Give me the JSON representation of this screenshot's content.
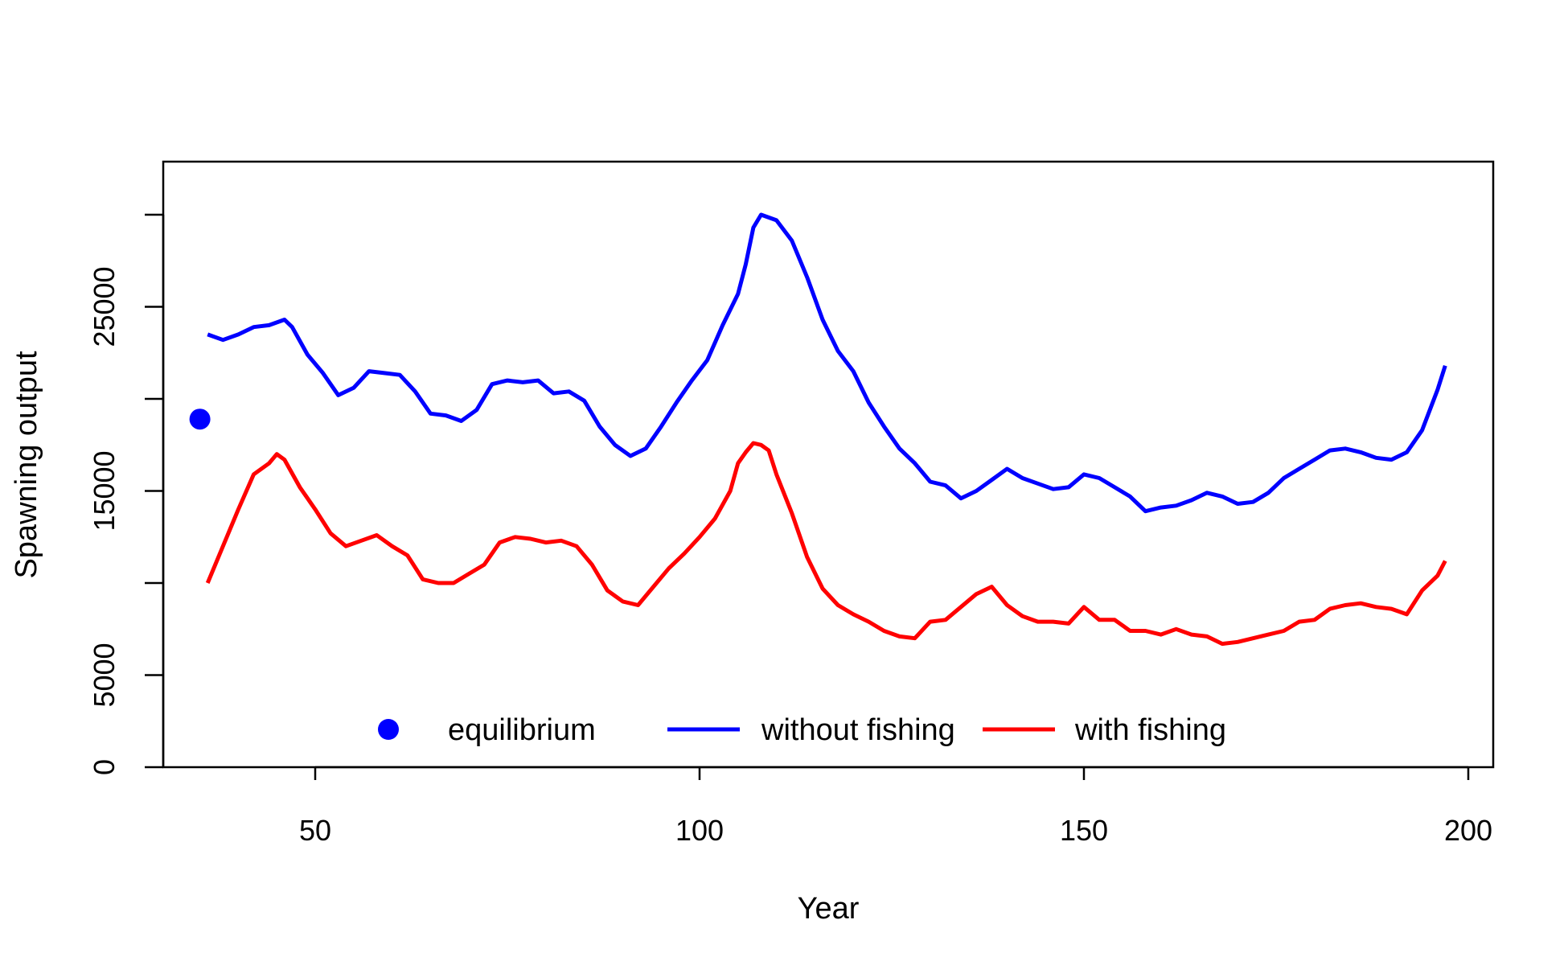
{
  "chart_data": {
    "type": "line",
    "xlabel": "Year",
    "ylabel": "Spawning output",
    "xlim": [
      30,
      200
    ],
    "ylim": [
      0,
      33000
    ],
    "x_ticks": [
      50,
      100,
      150,
      200
    ],
    "x_tick_labels": [
      "50",
      "100",
      "150",
      "200"
    ],
    "y_ticks": [
      0,
      5000,
      10000,
      15000,
      20000,
      25000,
      30000
    ],
    "y_tick_labels": [
      "0",
      "5000",
      "",
      "15000",
      "",
      "25000",
      ""
    ],
    "grid": false,
    "legend_position": "bottom",
    "equilibrium": {
      "x": 35,
      "y": 18900,
      "color": "#0000FF"
    },
    "series": [
      {
        "name": "without fishing",
        "color": "#0000FF",
        "points": [
          [
            36,
            23500
          ],
          [
            38,
            23200
          ],
          [
            40,
            23500
          ],
          [
            42,
            23900
          ],
          [
            44,
            24000
          ],
          [
            46,
            24300
          ],
          [
            47,
            23900
          ],
          [
            49,
            22400
          ],
          [
            51,
            21400
          ],
          [
            53,
            20200
          ],
          [
            55,
            20600
          ],
          [
            57,
            21500
          ],
          [
            59,
            21400
          ],
          [
            61,
            21300
          ],
          [
            63,
            20400
          ],
          [
            65,
            19200
          ],
          [
            67,
            19100
          ],
          [
            69,
            18800
          ],
          [
            71,
            19400
          ],
          [
            73,
            20800
          ],
          [
            75,
            21000
          ],
          [
            77,
            20900
          ],
          [
            79,
            21000
          ],
          [
            81,
            20300
          ],
          [
            83,
            20400
          ],
          [
            85,
            19900
          ],
          [
            87,
            18500
          ],
          [
            89,
            17500
          ],
          [
            91,
            16900
          ],
          [
            93,
            17300
          ],
          [
            95,
            18500
          ],
          [
            97,
            19800
          ],
          [
            99,
            21000
          ],
          [
            101,
            22100
          ],
          [
            103,
            24000
          ],
          [
            105,
            25700
          ],
          [
            106,
            27300
          ],
          [
            107,
            29300
          ],
          [
            108,
            30000
          ],
          [
            110,
            29700
          ],
          [
            112,
            28600
          ],
          [
            114,
            26600
          ],
          [
            116,
            24300
          ],
          [
            118,
            22600
          ],
          [
            120,
            21500
          ],
          [
            122,
            19800
          ],
          [
            124,
            18500
          ],
          [
            126,
            17300
          ],
          [
            128,
            16500
          ],
          [
            130,
            15500
          ],
          [
            132,
            15300
          ],
          [
            134,
            14600
          ],
          [
            136,
            15000
          ],
          [
            138,
            15600
          ],
          [
            140,
            16200
          ],
          [
            142,
            15700
          ],
          [
            144,
            15400
          ],
          [
            146,
            15100
          ],
          [
            148,
            15200
          ],
          [
            150,
            15900
          ],
          [
            152,
            15700
          ],
          [
            154,
            15200
          ],
          [
            156,
            14700
          ],
          [
            158,
            13900
          ],
          [
            160,
            14100
          ],
          [
            162,
            14200
          ],
          [
            164,
            14500
          ],
          [
            166,
            14900
          ],
          [
            168,
            14700
          ],
          [
            170,
            14300
          ],
          [
            172,
            14400
          ],
          [
            174,
            14900
          ],
          [
            176,
            15700
          ],
          [
            178,
            16200
          ],
          [
            180,
            16700
          ],
          [
            182,
            17200
          ],
          [
            184,
            17300
          ],
          [
            186,
            17100
          ],
          [
            188,
            16800
          ],
          [
            190,
            16700
          ],
          [
            192,
            17100
          ],
          [
            194,
            18300
          ],
          [
            196,
            20500
          ],
          [
            197,
            21800
          ]
        ]
      },
      {
        "name": "with fishing",
        "color": "#FF0000",
        "points": [
          [
            36,
            10000
          ],
          [
            38,
            12000
          ],
          [
            40,
            14000
          ],
          [
            42,
            15900
          ],
          [
            44,
            16500
          ],
          [
            45,
            17000
          ],
          [
            46,
            16700
          ],
          [
            48,
            15200
          ],
          [
            50,
            14000
          ],
          [
            52,
            12700
          ],
          [
            54,
            12000
          ],
          [
            56,
            12300
          ],
          [
            58,
            12600
          ],
          [
            60,
            12000
          ],
          [
            62,
            11500
          ],
          [
            64,
            10200
          ],
          [
            66,
            10000
          ],
          [
            68,
            10000
          ],
          [
            70,
            10500
          ],
          [
            72,
            11000
          ],
          [
            74,
            12200
          ],
          [
            76,
            12500
          ],
          [
            78,
            12400
          ],
          [
            80,
            12200
          ],
          [
            82,
            12300
          ],
          [
            84,
            12000
          ],
          [
            86,
            11000
          ],
          [
            88,
            9600
          ],
          [
            90,
            9000
          ],
          [
            92,
            8800
          ],
          [
            94,
            9800
          ],
          [
            96,
            10800
          ],
          [
            98,
            11600
          ],
          [
            100,
            12500
          ],
          [
            102,
            13500
          ],
          [
            104,
            15000
          ],
          [
            105,
            16500
          ],
          [
            106,
            17100
          ],
          [
            107,
            17600
          ],
          [
            108,
            17500
          ],
          [
            109,
            17200
          ],
          [
            110,
            15900
          ],
          [
            112,
            13800
          ],
          [
            114,
            11400
          ],
          [
            116,
            9700
          ],
          [
            118,
            8800
          ],
          [
            120,
            8300
          ],
          [
            122,
            7900
          ],
          [
            124,
            7400
          ],
          [
            126,
            7100
          ],
          [
            128,
            7000
          ],
          [
            130,
            7900
          ],
          [
            132,
            8000
          ],
          [
            134,
            8700
          ],
          [
            136,
            9400
          ],
          [
            138,
            9800
          ],
          [
            140,
            8800
          ],
          [
            142,
            8200
          ],
          [
            144,
            7900
          ],
          [
            146,
            7900
          ],
          [
            148,
            7800
          ],
          [
            150,
            8700
          ],
          [
            152,
            8000
          ],
          [
            154,
            8000
          ],
          [
            156,
            7400
          ],
          [
            158,
            7400
          ],
          [
            160,
            7200
          ],
          [
            162,
            7500
          ],
          [
            164,
            7200
          ],
          [
            166,
            7100
          ],
          [
            168,
            6700
          ],
          [
            170,
            6800
          ],
          [
            172,
            7000
          ],
          [
            174,
            7200
          ],
          [
            176,
            7400
          ],
          [
            178,
            7900
          ],
          [
            180,
            8000
          ],
          [
            182,
            8600
          ],
          [
            184,
            8800
          ],
          [
            186,
            8900
          ],
          [
            188,
            8700
          ],
          [
            190,
            8600
          ],
          [
            192,
            8300
          ],
          [
            194,
            9600
          ],
          [
            196,
            10400
          ],
          [
            197,
            11200
          ]
        ]
      }
    ]
  },
  "legend": {
    "items": [
      {
        "label": "equilibrium",
        "kind": "point",
        "color": "#0000FF"
      },
      {
        "label": "without fishing",
        "kind": "line",
        "color": "#0000FF"
      },
      {
        "label": "with fishing",
        "kind": "line",
        "color": "#FF0000"
      }
    ]
  }
}
